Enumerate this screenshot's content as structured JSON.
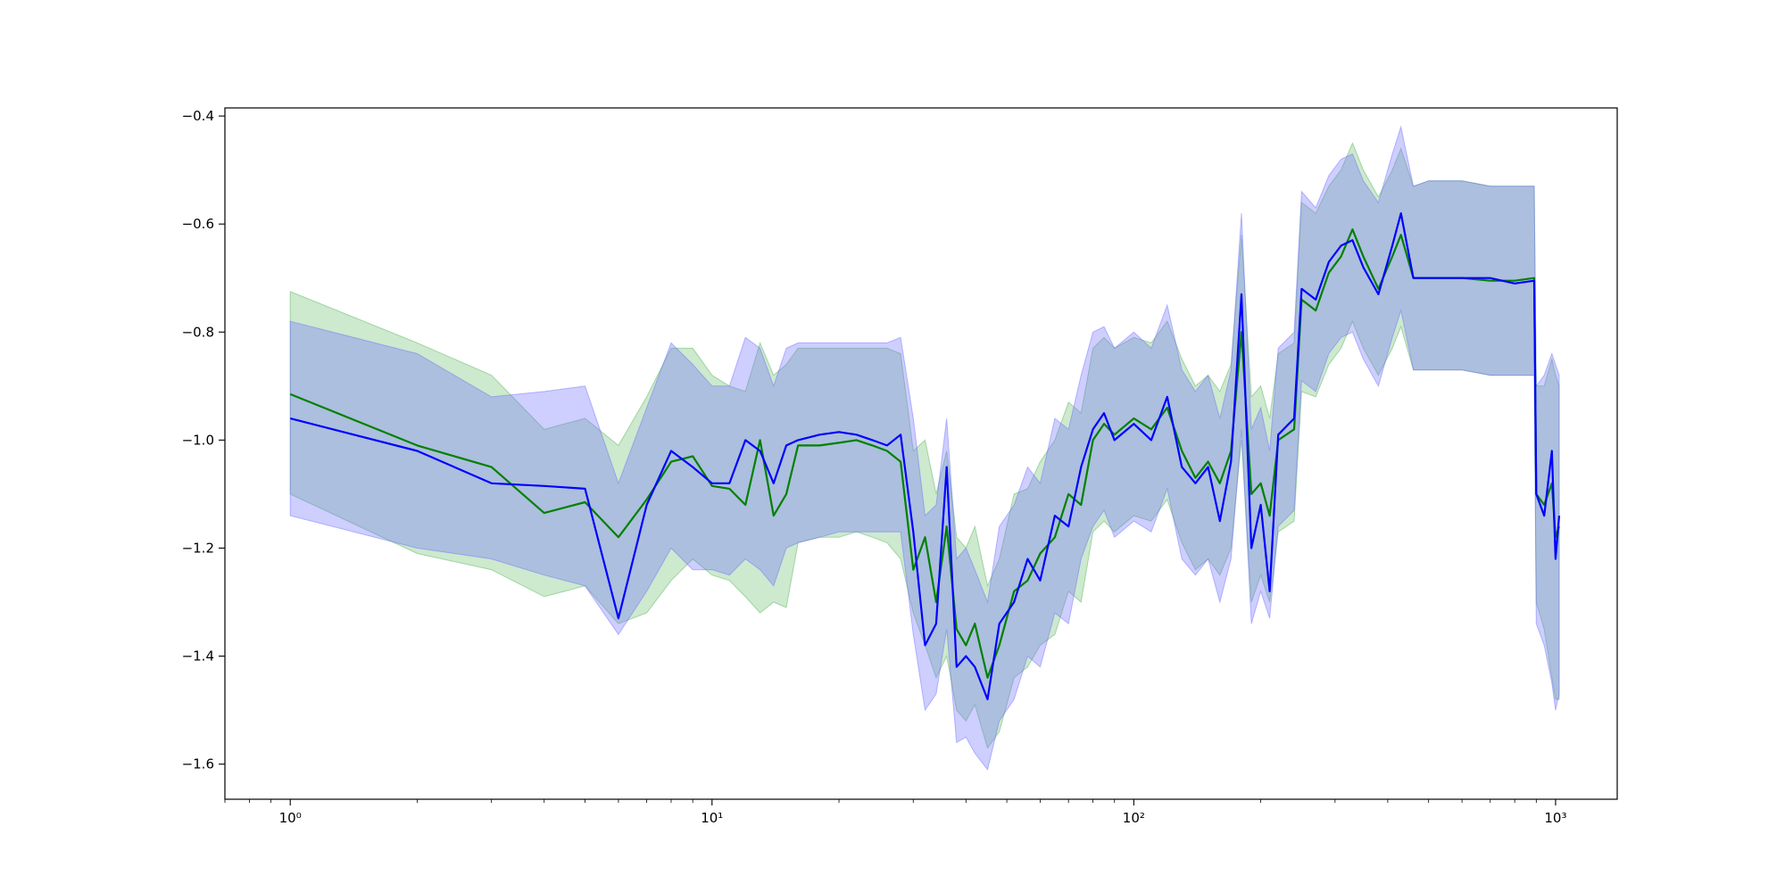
{
  "chart_data": {
    "type": "line",
    "title": "",
    "xlabel": "",
    "ylabel": "",
    "xscale": "log",
    "xlim": [
      0.7,
      1400
    ],
    "ylim": [
      -1.665,
      -0.385
    ],
    "grid": false,
    "legend": "none",
    "x_ticks": [
      {
        "value": 1,
        "label": "10⁰"
      },
      {
        "value": 10,
        "label": "10¹"
      },
      {
        "value": 100,
        "label": "10²"
      },
      {
        "value": 1000,
        "label": "10³"
      }
    ],
    "y_ticks": [
      {
        "value": -0.4,
        "label": "−0.4"
      },
      {
        "value": -0.6,
        "label": "−0.6"
      },
      {
        "value": -0.8,
        "label": "−0.8"
      },
      {
        "value": -1.0,
        "label": "−1.0"
      },
      {
        "value": -1.2,
        "label": "−1.2"
      },
      {
        "value": -1.4,
        "label": "−1.4"
      },
      {
        "value": -1.6,
        "label": "−1.6"
      }
    ],
    "series": [
      {
        "color": "#008000",
        "band_color": "#4caf50",
        "points": [
          [
            1,
            -0.915,
            -1.1,
            -0.725
          ],
          [
            2,
            -1.01,
            -1.21,
            -0.82
          ],
          [
            3,
            -1.05,
            -1.24,
            -0.88
          ],
          [
            4,
            -1.135,
            -1.29,
            -0.98
          ],
          [
            5,
            -1.115,
            -1.27,
            -0.96
          ],
          [
            6,
            -1.18,
            -1.34,
            -1.01
          ],
          [
            7,
            -1.11,
            -1.32,
            -0.92
          ],
          [
            8,
            -1.04,
            -1.26,
            -0.83
          ],
          [
            9,
            -1.03,
            -1.22,
            -0.83
          ],
          [
            10,
            -1.085,
            -1.25,
            -0.88
          ],
          [
            11,
            -1.09,
            -1.26,
            -0.9
          ],
          [
            12,
            -1.12,
            -1.29,
            -0.91
          ],
          [
            13,
            -1.0,
            -1.32,
            -0.82
          ],
          [
            14,
            -1.14,
            -1.3,
            -0.88
          ],
          [
            15,
            -1.1,
            -1.31,
            -0.86
          ],
          [
            16,
            -1.01,
            -1.19,
            -0.83
          ],
          [
            18,
            -1.01,
            -1.18,
            -0.83
          ],
          [
            20,
            -1.005,
            -1.18,
            -0.83
          ],
          [
            22,
            -1.0,
            -1.17,
            -0.83
          ],
          [
            24,
            -1.01,
            -1.18,
            -0.83
          ],
          [
            26,
            -1.02,
            -1.19,
            -0.83
          ],
          [
            28,
            -1.04,
            -1.22,
            -0.84
          ],
          [
            30,
            -1.24,
            -1.32,
            -1.02
          ],
          [
            32,
            -1.18,
            -1.38,
            -1.0
          ],
          [
            34,
            -1.3,
            -1.44,
            -1.1
          ],
          [
            36,
            -1.16,
            -1.4,
            -1.02
          ],
          [
            38,
            -1.35,
            -1.5,
            -1.18
          ],
          [
            40,
            -1.38,
            -1.52,
            -1.2
          ],
          [
            42,
            -1.34,
            -1.49,
            -1.16
          ],
          [
            45,
            -1.44,
            -1.57,
            -1.27
          ],
          [
            48,
            -1.38,
            -1.54,
            -1.22
          ],
          [
            52,
            -1.28,
            -1.44,
            -1.1
          ],
          [
            56,
            -1.26,
            -1.42,
            -1.09
          ],
          [
            60,
            -1.21,
            -1.38,
            -1.04
          ],
          [
            65,
            -1.18,
            -1.36,
            -1.0
          ],
          [
            70,
            -1.1,
            -1.28,
            -0.93
          ],
          [
            75,
            -1.12,
            -1.3,
            -0.95
          ],
          [
            80,
            -1.0,
            -1.17,
            -0.83
          ],
          [
            85,
            -0.97,
            -1.15,
            -0.81
          ],
          [
            90,
            -0.99,
            -1.17,
            -0.83
          ],
          [
            100,
            -0.96,
            -1.14,
            -0.81
          ],
          [
            110,
            -0.98,
            -1.15,
            -0.82
          ],
          [
            120,
            -0.94,
            -1.11,
            -0.78
          ],
          [
            130,
            -1.02,
            -1.19,
            -0.85
          ],
          [
            140,
            -1.07,
            -1.24,
            -0.9
          ],
          [
            150,
            -1.04,
            -1.22,
            -0.88
          ],
          [
            160,
            -1.08,
            -1.25,
            -0.91
          ],
          [
            170,
            -1.02,
            -1.2,
            -0.86
          ],
          [
            180,
            -0.8,
            -1.0,
            -0.62
          ],
          [
            190,
            -1.1,
            -1.3,
            -0.92
          ],
          [
            200,
            -1.08,
            -1.25,
            -0.9
          ],
          [
            210,
            -1.14,
            -1.3,
            -0.96
          ],
          [
            220,
            -1.0,
            -1.17,
            -0.84
          ],
          [
            240,
            -0.98,
            -1.15,
            -0.82
          ],
          [
            250,
            -0.74,
            -0.91,
            -0.56
          ],
          [
            270,
            -0.76,
            -0.92,
            -0.58
          ],
          [
            290,
            -0.69,
            -0.86,
            -0.53
          ],
          [
            310,
            -0.66,
            -0.83,
            -0.5
          ],
          [
            330,
            -0.61,
            -0.78,
            -0.45
          ],
          [
            350,
            -0.66,
            -0.83,
            -0.5
          ],
          [
            380,
            -0.72,
            -0.88,
            -0.55
          ],
          [
            410,
            -0.66,
            -0.83,
            -0.5
          ],
          [
            430,
            -0.62,
            -0.79,
            -0.46
          ],
          [
            460,
            -0.7,
            -0.87,
            -0.53
          ],
          [
            500,
            -0.7,
            -0.87,
            -0.52
          ],
          [
            600,
            -0.7,
            -0.87,
            -0.52
          ],
          [
            700,
            -0.705,
            -0.88,
            -0.53
          ],
          [
            800,
            -0.705,
            -0.88,
            -0.53
          ],
          [
            890,
            -0.7,
            -0.88,
            -0.53
          ],
          [
            900,
            -1.1,
            -1.3,
            -0.9
          ],
          [
            940,
            -1.12,
            -1.35,
            -0.9
          ],
          [
            980,
            -1.08,
            -1.44,
            -0.85
          ],
          [
            1000,
            -1.18,
            -1.48,
            -0.88
          ],
          [
            1020,
            -1.16,
            -1.48,
            -0.9
          ]
        ]
      },
      {
        "color": "#0000ff",
        "band_color": "#6a6aff",
        "points": [
          [
            1,
            -0.96,
            -1.14,
            -0.78
          ],
          [
            2,
            -1.02,
            -1.2,
            -0.84
          ],
          [
            3,
            -1.08,
            -1.22,
            -0.92
          ],
          [
            4,
            -1.085,
            -1.25,
            -0.91
          ],
          [
            5,
            -1.09,
            -1.27,
            -0.9
          ],
          [
            6,
            -1.33,
            -1.36,
            -1.08
          ],
          [
            7,
            -1.12,
            -1.28,
            -0.94
          ],
          [
            8,
            -1.02,
            -1.2,
            -0.82
          ],
          [
            9,
            -1.05,
            -1.24,
            -0.86
          ],
          [
            10,
            -1.08,
            -1.24,
            -0.9
          ],
          [
            11,
            -1.08,
            -1.25,
            -0.9
          ],
          [
            12,
            -1.0,
            -1.22,
            -0.81
          ],
          [
            13,
            -1.02,
            -1.24,
            -0.83
          ],
          [
            14,
            -1.08,
            -1.27,
            -0.9
          ],
          [
            15,
            -1.01,
            -1.2,
            -0.83
          ],
          [
            16,
            -1.0,
            -1.19,
            -0.82
          ],
          [
            18,
            -0.99,
            -1.18,
            -0.82
          ],
          [
            20,
            -0.985,
            -1.17,
            -0.82
          ],
          [
            22,
            -0.99,
            -1.17,
            -0.82
          ],
          [
            24,
            -1.0,
            -1.17,
            -0.82
          ],
          [
            26,
            -1.01,
            -1.17,
            -0.82
          ],
          [
            28,
            -0.99,
            -1.17,
            -0.81
          ],
          [
            30,
            -1.17,
            -1.36,
            -0.96
          ],
          [
            32,
            -1.38,
            -1.5,
            -1.14
          ],
          [
            34,
            -1.34,
            -1.47,
            -1.12
          ],
          [
            36,
            -1.05,
            -1.35,
            -0.96
          ],
          [
            38,
            -1.42,
            -1.56,
            -1.22
          ],
          [
            40,
            -1.4,
            -1.55,
            -1.2
          ],
          [
            42,
            -1.42,
            -1.58,
            -1.24
          ],
          [
            45,
            -1.48,
            -1.61,
            -1.3
          ],
          [
            48,
            -1.34,
            -1.52,
            -1.16
          ],
          [
            52,
            -1.3,
            -1.48,
            -1.12
          ],
          [
            56,
            -1.22,
            -1.4,
            -1.05
          ],
          [
            60,
            -1.26,
            -1.42,
            -1.08
          ],
          [
            65,
            -1.14,
            -1.32,
            -0.96
          ],
          [
            70,
            -1.16,
            -1.34,
            -0.98
          ],
          [
            75,
            -1.05,
            -1.22,
            -0.88
          ],
          [
            80,
            -0.98,
            -1.16,
            -0.8
          ],
          [
            85,
            -0.95,
            -1.13,
            -0.79
          ],
          [
            90,
            -1.0,
            -1.18,
            -0.83
          ],
          [
            100,
            -0.97,
            -1.15,
            -0.8
          ],
          [
            110,
            -1.0,
            -1.17,
            -0.83
          ],
          [
            120,
            -0.92,
            -1.09,
            -0.75
          ],
          [
            130,
            -1.05,
            -1.22,
            -0.87
          ],
          [
            140,
            -1.08,
            -1.25,
            -0.91
          ],
          [
            150,
            -1.05,
            -1.22,
            -0.88
          ],
          [
            160,
            -1.15,
            -1.3,
            -0.96
          ],
          [
            170,
            -1.04,
            -1.22,
            -0.87
          ],
          [
            180,
            -0.73,
            -0.98,
            -0.58
          ],
          [
            190,
            -1.2,
            -1.34,
            -0.98
          ],
          [
            200,
            -1.12,
            -1.28,
            -0.94
          ],
          [
            210,
            -1.28,
            -1.33,
            -1.02
          ],
          [
            220,
            -0.99,
            -1.16,
            -0.83
          ],
          [
            240,
            -0.96,
            -1.13,
            -0.8
          ],
          [
            250,
            -0.72,
            -0.89,
            -0.54
          ],
          [
            270,
            -0.74,
            -0.91,
            -0.57
          ],
          [
            290,
            -0.67,
            -0.84,
            -0.51
          ],
          [
            310,
            -0.64,
            -0.81,
            -0.48
          ],
          [
            330,
            -0.63,
            -0.8,
            -0.47
          ],
          [
            350,
            -0.68,
            -0.85,
            -0.52
          ],
          [
            380,
            -0.73,
            -0.9,
            -0.56
          ],
          [
            410,
            -0.64,
            -0.81,
            -0.47
          ],
          [
            430,
            -0.58,
            -0.76,
            -0.42
          ],
          [
            460,
            -0.7,
            -0.87,
            -0.53
          ],
          [
            500,
            -0.7,
            -0.87,
            -0.52
          ],
          [
            600,
            -0.7,
            -0.87,
            -0.52
          ],
          [
            700,
            -0.7,
            -0.88,
            -0.53
          ],
          [
            800,
            -0.71,
            -0.88,
            -0.53
          ],
          [
            890,
            -0.705,
            -0.88,
            -0.53
          ],
          [
            900,
            -1.1,
            -1.34,
            -0.9
          ],
          [
            940,
            -1.14,
            -1.38,
            -0.88
          ],
          [
            980,
            -1.02,
            -1.45,
            -0.84
          ],
          [
            1000,
            -1.22,
            -1.5,
            -0.86
          ],
          [
            1020,
            -1.14,
            -1.47,
            -0.88
          ]
        ]
      }
    ]
  }
}
